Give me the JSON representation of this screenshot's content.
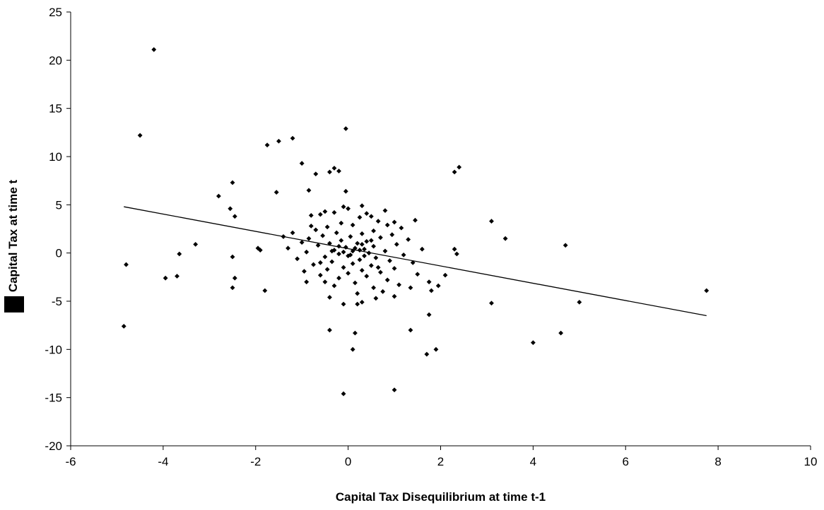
{
  "chart_data": {
    "type": "scatter",
    "title": "",
    "xlabel": "Capital Tax Disequilibrium at time t-1",
    "ylabel": "Capital Tax at time t",
    "xlim": [
      -6,
      10
    ],
    "ylim": [
      -20,
      25
    ],
    "x_ticks": [
      -6,
      -4,
      -2,
      0,
      2,
      4,
      6,
      8,
      10
    ],
    "y_ticks": [
      -20,
      -15,
      -10,
      -5,
      0,
      5,
      10,
      15,
      20,
      25
    ],
    "grid": false,
    "legend": "none",
    "marker": "diamond",
    "marker_color": "#000000",
    "trendline": {
      "type": "linear",
      "x_start": -4.85,
      "y_start": 4.8,
      "x_end": 7.75,
      "y_end": -6.5
    },
    "series": [
      {
        "points": [
          [
            -4.2,
            21.1
          ],
          [
            -4.5,
            12.2
          ],
          [
            -0.05,
            12.9
          ],
          [
            -1.2,
            11.9
          ],
          [
            -1.5,
            11.6
          ],
          [
            -1.75,
            11.2
          ],
          [
            -1.0,
            9.3
          ],
          [
            -0.3,
            8.8
          ],
          [
            -0.4,
            8.4
          ],
          [
            -0.2,
            8.5
          ],
          [
            -0.7,
            8.2
          ],
          [
            2.4,
            8.9
          ],
          [
            2.3,
            8.4
          ],
          [
            -2.5,
            7.3
          ],
          [
            -1.55,
            6.3
          ],
          [
            -0.85,
            6.5
          ],
          [
            -0.05,
            6.4
          ],
          [
            -2.8,
            5.9
          ],
          [
            -2.55,
            4.6
          ],
          [
            -2.45,
            3.8
          ],
          [
            3.1,
            3.3
          ],
          [
            3.4,
            1.5
          ],
          [
            4.7,
            0.8
          ],
          [
            2.3,
            0.4
          ],
          [
            2.35,
            -0.1
          ],
          [
            -3.3,
            0.9
          ],
          [
            -3.65,
            -0.1
          ],
          [
            -1.95,
            0.5
          ],
          [
            -1.9,
            0.3
          ],
          [
            -2.5,
            -0.4
          ],
          [
            -4.8,
            -1.2
          ],
          [
            -3.95,
            -2.6
          ],
          [
            -3.7,
            -2.4
          ],
          [
            -2.45,
            -2.6
          ],
          [
            -2.5,
            -3.6
          ],
          [
            -1.8,
            -3.9
          ],
          [
            1.75,
            -3.0
          ],
          [
            1.8,
            -3.9
          ],
          [
            1.95,
            -3.4
          ],
          [
            3.1,
            -5.2
          ],
          [
            5.0,
            -5.1
          ],
          [
            7.75,
            -3.9
          ],
          [
            1.75,
            -6.4
          ],
          [
            -0.1,
            -5.3
          ],
          [
            0.2,
            -5.3
          ],
          [
            0.3,
            -5.1
          ],
          [
            -0.4,
            -8.0
          ],
          [
            0.15,
            -8.3
          ],
          [
            1.35,
            -8.0
          ],
          [
            0.1,
            -10.0
          ],
          [
            1.7,
            -10.5
          ],
          [
            1.9,
            -10.0
          ],
          [
            4.0,
            -9.3
          ],
          [
            4.6,
            -8.3
          ],
          [
            -4.85,
            -7.6
          ],
          [
            -0.1,
            -14.6
          ],
          [
            1.0,
            -14.2
          ],
          [
            -0.5,
            4.3
          ],
          [
            -0.3,
            4.2
          ],
          [
            -0.1,
            4.8
          ],
          [
            0.0,
            4.6
          ],
          [
            0.3,
            4.9
          ],
          [
            0.4,
            4.1
          ],
          [
            0.8,
            4.4
          ],
          [
            -0.6,
            4.0
          ],
          [
            0.5,
            3.8
          ],
          [
            1.0,
            3.2
          ],
          [
            1.45,
            3.4
          ],
          [
            0.25,
            3.7
          ],
          [
            -0.8,
            3.9
          ],
          [
            0.65,
            3.3
          ],
          [
            -0.15,
            3.1
          ],
          [
            0.85,
            2.9
          ],
          [
            -0.45,
            2.7
          ],
          [
            0.1,
            2.9
          ],
          [
            1.15,
            2.6
          ],
          [
            -0.7,
            2.4
          ],
          [
            -1.2,
            2.1
          ],
          [
            0.55,
            2.3
          ],
          [
            -0.25,
            2.1
          ],
          [
            0.95,
            1.9
          ],
          [
            0.3,
            2.0
          ],
          [
            -0.55,
            1.8
          ],
          [
            -1.4,
            1.7
          ],
          [
            0.05,
            1.7
          ],
          [
            1.3,
            1.4
          ],
          [
            -0.85,
            1.5
          ],
          [
            0.7,
            1.6
          ],
          [
            -0.15,
            1.3
          ],
          [
            0.4,
            1.2
          ],
          [
            -1.0,
            1.1
          ],
          [
            -0.4,
            1.0
          ],
          [
            0.2,
            1.0
          ],
          [
            1.05,
            0.9
          ],
          [
            -0.65,
            0.8
          ],
          [
            0.55,
            0.7
          ],
          [
            -0.05,
            0.6
          ],
          [
            -1.3,
            0.5
          ],
          [
            1.6,
            0.4
          ],
          [
            0.35,
            0.4
          ],
          [
            -0.3,
            0.3
          ],
          [
            0.1,
            0.2
          ],
          [
            0.8,
            0.2
          ],
          [
            -0.9,
            0.1
          ],
          [
            0.45,
            0.0
          ],
          [
            -0.2,
            -0.1
          ],
          [
            1.2,
            -0.2
          ],
          [
            0.0,
            -0.3
          ],
          [
            -0.5,
            -0.4
          ],
          [
            0.6,
            -0.5
          ],
          [
            -1.1,
            -0.6
          ],
          [
            0.25,
            -0.7
          ],
          [
            0.9,
            -0.8
          ],
          [
            -0.35,
            -0.9
          ],
          [
            1.4,
            -1.0
          ],
          [
            0.1,
            -1.1
          ],
          [
            -0.75,
            -1.2
          ],
          [
            0.5,
            -1.3
          ],
          [
            -0.1,
            -1.5
          ],
          [
            1.0,
            -1.6
          ],
          [
            -0.45,
            -1.7
          ],
          [
            0.3,
            -1.8
          ],
          [
            -0.95,
            -1.9
          ],
          [
            0.7,
            -2.0
          ],
          [
            0.0,
            -2.1
          ],
          [
            1.5,
            -2.2
          ],
          [
            -0.6,
            -2.3
          ],
          [
            0.4,
            -2.4
          ],
          [
            -0.2,
            -2.6
          ],
          [
            2.1,
            -2.3
          ],
          [
            0.85,
            -2.8
          ],
          [
            -0.5,
            -3.0
          ],
          [
            0.15,
            -3.1
          ],
          [
            1.1,
            -3.3
          ],
          [
            -0.3,
            -3.4
          ],
          [
            0.55,
            -3.6
          ],
          [
            1.35,
            -3.6
          ],
          [
            -0.9,
            -3.0
          ],
          [
            0.75,
            -4.0
          ],
          [
            0.2,
            -4.2
          ],
          [
            1.0,
            -4.5
          ],
          [
            -0.4,
            -4.6
          ],
          [
            0.6,
            -4.7
          ],
          [
            0.3,
            0.9
          ],
          [
            -0.1,
            0.1
          ],
          [
            0.15,
            0.5
          ],
          [
            0.05,
            -0.2
          ],
          [
            -0.2,
            0.7
          ],
          [
            0.25,
            0.3
          ],
          [
            0.35,
            -0.3
          ],
          [
            -0.35,
            0.2
          ],
          [
            0.5,
            1.3
          ],
          [
            -0.6,
            -1.0
          ],
          [
            0.65,
            -1.5
          ],
          [
            -0.8,
            2.8
          ]
        ]
      }
    ]
  }
}
